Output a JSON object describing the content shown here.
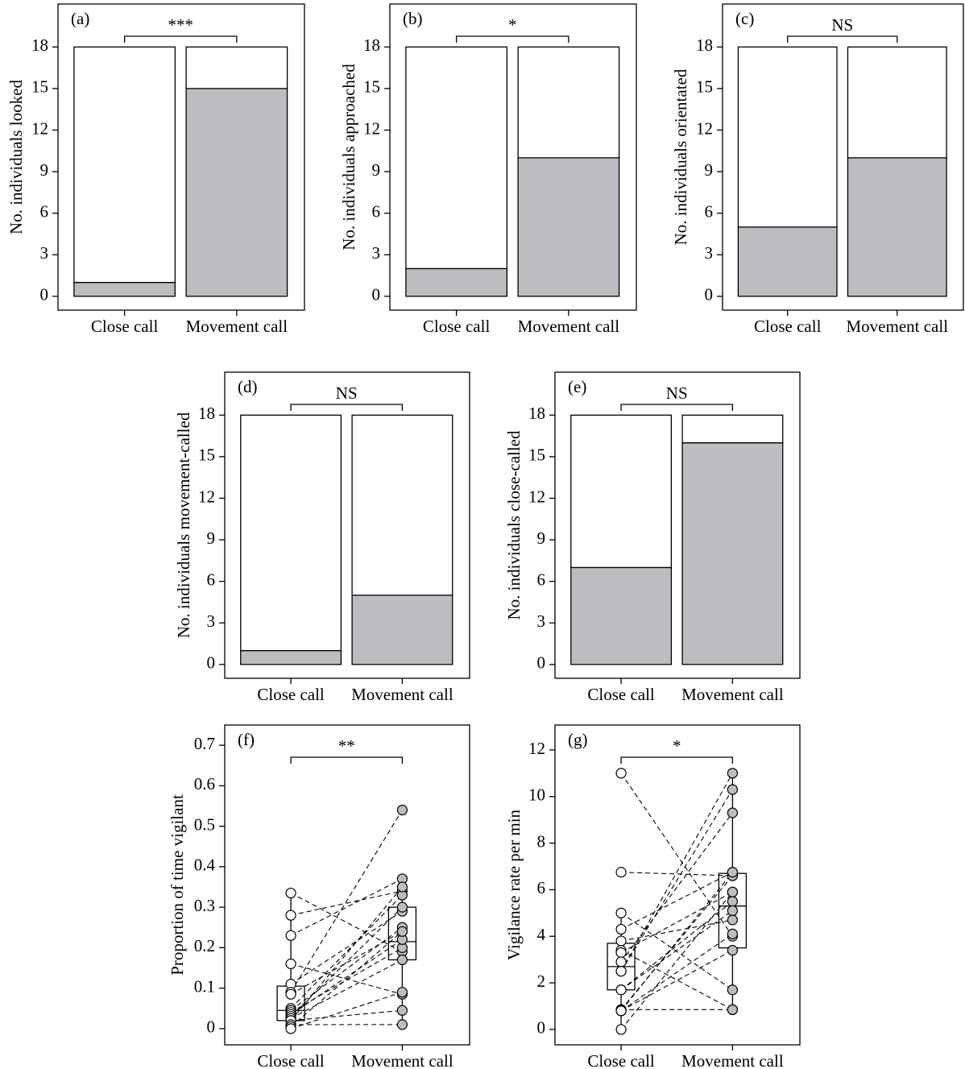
{
  "chart_data": [
    {
      "type": "bar",
      "label": "(a)",
      "annotation": "***",
      "ylabel": "No. individuals looked",
      "categories": [
        "Close call",
        "Movement call"
      ],
      "series": [
        {
          "color": "#bcbdc0",
          "values": [
            1,
            15
          ]
        },
        {
          "color": "#ffffff",
          "values": [
            17,
            3
          ]
        }
      ],
      "ylim": [
        -1,
        21.1
      ],
      "yticks": [
        0,
        3,
        6,
        9,
        12,
        15,
        18
      ]
    },
    {
      "type": "bar",
      "label": "(b)",
      "annotation": "*",
      "ylabel": "No. individuals approached",
      "categories": [
        "Close call",
        "Movement call"
      ],
      "series": [
        {
          "color": "#bcbdc0",
          "values": [
            2,
            10
          ]
        },
        {
          "color": "#ffffff",
          "values": [
            16,
            8
          ]
        }
      ],
      "ylim": [
        -1,
        21.1
      ],
      "yticks": [
        0,
        3,
        6,
        9,
        12,
        15,
        18
      ]
    },
    {
      "type": "bar",
      "label": "(c)",
      "annotation": "NS",
      "ylabel": "No. individuals orientated",
      "categories": [
        "Close call",
        "Movement call"
      ],
      "series": [
        {
          "color": "#bcbdc0",
          "values": [
            5,
            10
          ]
        },
        {
          "color": "#ffffff",
          "values": [
            13,
            8
          ]
        }
      ],
      "ylim": [
        -1,
        21.1
      ],
      "yticks": [
        0,
        3,
        6,
        9,
        12,
        15,
        18
      ]
    },
    {
      "type": "bar",
      "label": "(d)",
      "annotation": "NS",
      "ylabel": "No. individuals movement-called",
      "categories": [
        "Close call",
        "Movement call"
      ],
      "series": [
        {
          "color": "#bcbdc0",
          "values": [
            1,
            5
          ]
        },
        {
          "color": "#ffffff",
          "values": [
            17,
            13
          ]
        }
      ],
      "ylim": [
        -1,
        21.1
      ],
      "yticks": [
        0,
        3,
        6,
        9,
        12,
        15,
        18
      ]
    },
    {
      "type": "bar",
      "label": "(e)",
      "annotation": "NS",
      "ylabel": "No. individuals close-called",
      "categories": [
        "Close call",
        "Movement call"
      ],
      "series": [
        {
          "color": "#bcbdc0",
          "values": [
            7,
            16
          ]
        },
        {
          "color": "#ffffff",
          "values": [
            11,
            2
          ]
        }
      ],
      "ylim": [
        -1,
        21.1
      ],
      "yticks": [
        0,
        3,
        6,
        9,
        12,
        15,
        18
      ]
    },
    {
      "type": "box",
      "label": "(f)",
      "annotation": "**",
      "ylabel": "Proportion of time vigilant",
      "categories": [
        "Close call",
        "Movement call"
      ],
      "boxes": [
        {
          "min": 0,
          "q1": 0.02,
          "median": 0.045,
          "q3": 0.105,
          "max": 0.335
        },
        {
          "min": 0.01,
          "q1": 0.17,
          "median": 0.215,
          "q3": 0.3,
          "max": 0.37
        }
      ],
      "points": [
        {
          "color": "#ffffff",
          "values": [
            0.335,
            0.28,
            0.23,
            0.16,
            0.11,
            0.09,
            0.085,
            0.05,
            0.045,
            0.04,
            0.035,
            0.03,
            0.025,
            0.02,
            0.02,
            0.01,
            0.005,
            0
          ]
        },
        {
          "color": "#bcbdc0",
          "values": [
            0.19,
            0.34,
            0.37,
            0.085,
            0.29,
            0.54,
            0.24,
            0.33,
            0.25,
            0.2,
            0.22,
            0.3,
            0.17,
            0.045,
            0.35,
            0.01,
            0.24,
            0.09
          ]
        }
      ],
      "ylim": [
        -0.04,
        0.75
      ],
      "yticks": [
        0,
        0.1,
        0.2,
        0.3,
        0.4,
        0.5,
        0.6,
        0.7
      ]
    },
    {
      "type": "box",
      "label": "(g)",
      "annotation": "*",
      "ylabel": "Vigilance rate per min",
      "categories": [
        "Close call",
        "Movement call"
      ],
      "boxes": [
        {
          "min": 0,
          "q1": 1.7,
          "median": 2.7,
          "q3": 3.7,
          "max": 5
        },
        {
          "min": 0.85,
          "q1": 3.5,
          "median": 5.3,
          "q3": 6.7,
          "max": 11
        }
      ],
      "points": [
        {
          "color": "#ffffff",
          "values": [
            11,
            6.75,
            5,
            4.3,
            3.8,
            3.4,
            3.3,
            2.9,
            2.5,
            2.5,
            1.7,
            1.7,
            0.85,
            0.85,
            0.8,
            0.8,
            0.8,
            0
          ]
        },
        {
          "color": "#bcbdc0",
          "values": [
            4,
            6.6,
            1.7,
            6.75,
            4.7,
            0.85,
            5.9,
            9.3,
            11,
            10.3,
            5.5,
            5.1,
            6.6,
            0.85,
            4.1,
            3.4,
            6.75,
            5.9
          ]
        }
      ],
      "ylim": [
        -0.66,
        13.07
      ],
      "yticks": [
        0,
        2,
        4,
        6,
        8,
        10,
        12
      ]
    }
  ]
}
